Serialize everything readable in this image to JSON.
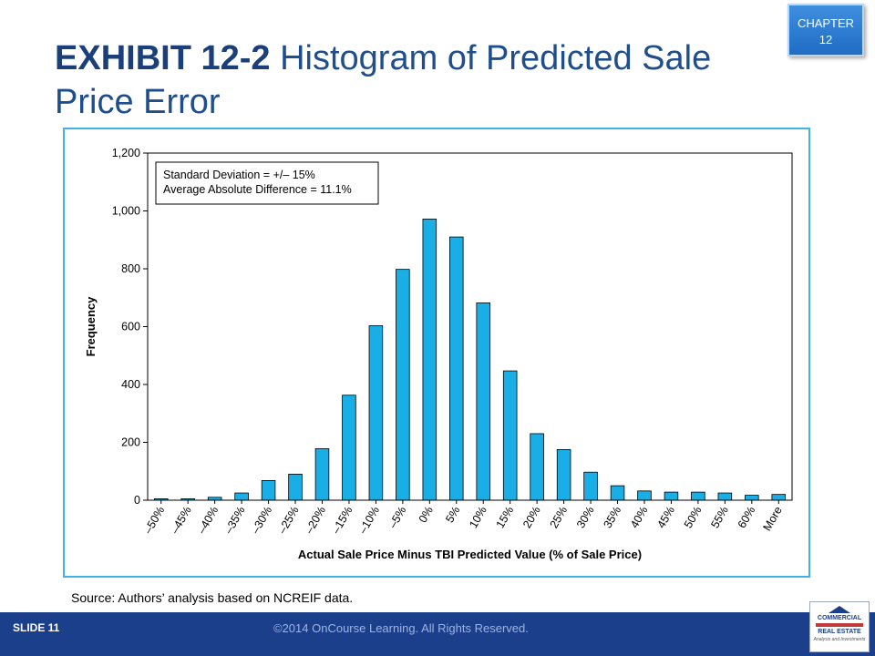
{
  "slide": {
    "title_bold": "EXHIBIT 12-2",
    "title_rest": " Histogram of Predicted Sale Price Error",
    "chapter_line1": "CHAPTER",
    "chapter_line2": "12",
    "source": "Source: Authors’ analysis based on NCREIF data.",
    "slide_number": "SLIDE 11",
    "copyright": "©2014 OnCourse Learning. All Rights Reserved.",
    "logo_line1": "COMMERCIAL",
    "logo_line2": "REAL ESTATE",
    "logo_line3": "Analysis and Investments"
  },
  "chart_data": {
    "type": "bar",
    "title": "",
    "xlabel": "Actual Sale Price Minus TBI Predicted Value (% of Sale Price)",
    "ylabel": "Frequency",
    "ylim": [
      0,
      1200
    ],
    "yticks": [
      0,
      200,
      400,
      600,
      800,
      1000,
      1200
    ],
    "ytick_labels": [
      "0",
      "200",
      "400",
      "600",
      "800",
      "1,000",
      "1,200"
    ],
    "categories": [
      "–50%",
      "–45%",
      "–40%",
      "–35%",
      "–30%",
      "–25%",
      "–20%",
      "–15%",
      "–10%",
      "–5%",
      "0%",
      "5%",
      "10%",
      "15%",
      "20%",
      "25%",
      "30%",
      "35%",
      "40%",
      "45%",
      "50%",
      "55%",
      "60%",
      "More"
    ],
    "values": [
      5,
      5,
      10,
      25,
      68,
      90,
      178,
      363,
      603,
      798,
      972,
      910,
      682,
      447,
      230,
      175,
      97,
      50,
      32,
      28,
      28,
      25,
      17,
      20
    ],
    "bar_color": "#19aee6",
    "annotation_lines": [
      "Standard Deviation = +/– 15%",
      "Average Absolute Difference = 11.1%"
    ],
    "grid": false,
    "legend": "none"
  }
}
